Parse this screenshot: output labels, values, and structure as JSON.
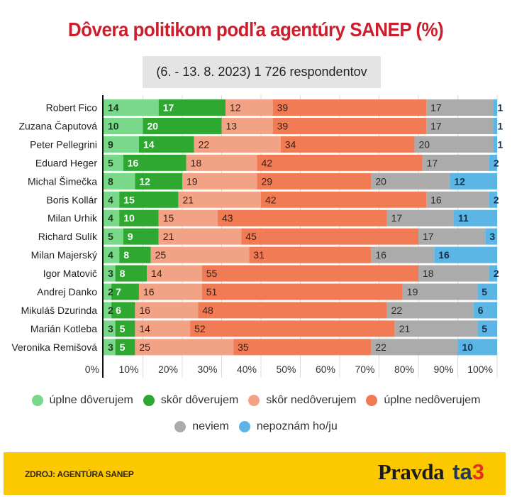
{
  "title": "Dôvera politikom podľa agentúry SANEP (%)",
  "subtitle": "(6. - 13. 8. 2023) 1 726 respondentov",
  "colors": {
    "title": "#cc1f2d",
    "subtitle_bg": "#e4e4e4",
    "footer_bg": "#fcc800",
    "logo_ta": "#1f3b57",
    "logo_3": "#e2341d"
  },
  "chart_data": {
    "type": "bar",
    "orientation": "horizontal",
    "stacked": true,
    "title": "Dôvera politikom podľa agentúry SANEP (%)",
    "subtitle": "(6. - 13. 8. 2023) 1 726 respondentov",
    "xlabel": "",
    "ylabel": "",
    "xlim": [
      0,
      100
    ],
    "xticks": [
      "0%",
      "10%",
      "20%",
      "30%",
      "40%",
      "50%",
      "60%",
      "70%",
      "80%",
      "90%",
      "100%"
    ],
    "grid": true,
    "legend_position": "bottom",
    "categories": [
      "Robert Fico",
      "Zuzana Čaputová",
      "Peter Pellegrini",
      "Eduard Heger",
      "Michal Šimečka",
      "Boris Kollár",
      "Milan Urhik",
      "Richard Sulík",
      "Milan Majerský",
      "Igor Matovič",
      "Andrej Danko",
      "Mikuláš Dzurinda",
      "Marián Kotleba",
      "Veronika Remišová"
    ],
    "series": [
      {
        "name": "úplne dôverujem",
        "color": "#7ad88a",
        "values": [
          14,
          10,
          9,
          5,
          8,
          4,
          4,
          5,
          4,
          3,
          2,
          2,
          3,
          3
        ]
      },
      {
        "name": "skôr dôverujem",
        "color": "#2fa831",
        "values": [
          17,
          20,
          14,
          16,
          12,
          15,
          10,
          9,
          8,
          8,
          7,
          6,
          5,
          5
        ]
      },
      {
        "name": "skôr nedôverujem",
        "color": "#f2a386",
        "values": [
          12,
          13,
          22,
          18,
          19,
          21,
          15,
          21,
          25,
          14,
          16,
          16,
          14,
          25
        ]
      },
      {
        "name": "úplne nedôverujem",
        "color": "#f07b55",
        "values": [
          39,
          39,
          34,
          42,
          29,
          42,
          43,
          45,
          31,
          55,
          51,
          48,
          52,
          35
        ]
      },
      {
        "name": "neviem",
        "color": "#ababab",
        "values": [
          17,
          17,
          20,
          17,
          20,
          16,
          17,
          17,
          16,
          18,
          19,
          22,
          21,
          22
        ]
      },
      {
        "name": "nepoznám ho/ju",
        "color": "#5bb5e5",
        "values": [
          1,
          1,
          1,
          2,
          12,
          2,
          11,
          3,
          16,
          2,
          5,
          6,
          5,
          10
        ]
      }
    ]
  },
  "footer": {
    "source": "ZDROJ: AGENTÚRA SANEP",
    "logo_pravda": "Pravda",
    "logo_ta": "ta",
    "logo_3": "3"
  }
}
